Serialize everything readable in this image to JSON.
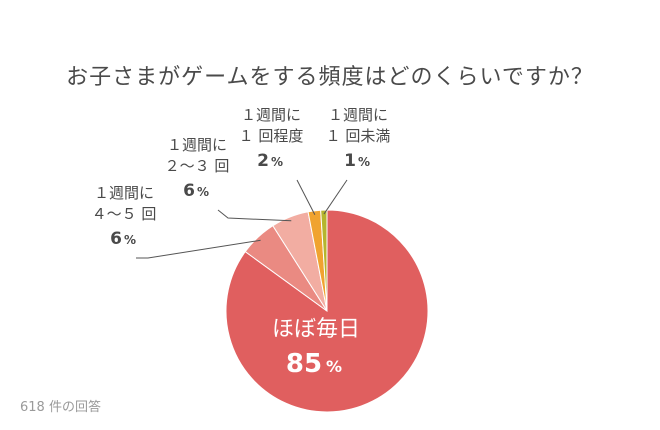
{
  "chart_data": {
    "type": "pie",
    "title": "お子さまがゲームをする頻度はどのくらいですか？",
    "note": "618 件の回答",
    "slices": [
      {
        "label": "ほぼ毎日",
        "label_lines": [
          "ほぼ毎日"
        ],
        "value": 85,
        "color": "#e05f5f"
      },
      {
        "label": "1週間に4〜5回",
        "label_lines": [
          "１週間に",
          "４〜５ 回"
        ],
        "value": 6,
        "color": "#ea8a82"
      },
      {
        "label": "1週間に2〜3回",
        "label_lines": [
          "１週間に",
          "２〜３ 回"
        ],
        "value": 6,
        "color": "#f2ada2"
      },
      {
        "label": "1週間に1回程度",
        "label_lines": [
          "１週間に",
          "１ 回程度"
        ],
        "value": 2,
        "color": "#f0a330"
      },
      {
        "label": "1週間に1回未満",
        "label_lines": [
          "１週間に",
          "１ 回未満"
        ],
        "value": 1,
        "color": "#b5b52e"
      }
    ],
    "unit": "%"
  }
}
